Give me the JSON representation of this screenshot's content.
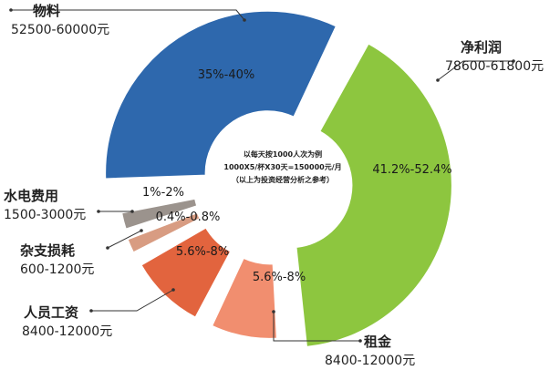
{
  "chart_data": {
    "type": "pie",
    "style": "exploded-donut",
    "slices": [
      {
        "name": "物料",
        "range": "52500-60000元",
        "percent_label": "35%-40%",
        "value": 37.5,
        "color": "#2e68ad"
      },
      {
        "name": "净利润",
        "range": "78600-61800元",
        "percent_label": "41.2%-52.4%",
        "value": 46.8,
        "color": "#8dc63f"
      },
      {
        "name": "租金",
        "range": "8400-12000元",
        "percent_label": "5.6%-8%",
        "value": 6.8,
        "color": "#f18e6f"
      },
      {
        "name": "人员工资",
        "range": "8400-12000元",
        "percent_label": "5.6%-8%",
        "value": 6.8,
        "color": "#e2643e"
      },
      {
        "name": "杂支损耗",
        "range": "600-1200元",
        "percent_label": "0.4%-0.8%",
        "value": 0.6,
        "color": "#d89c82"
      },
      {
        "name": "水电费用",
        "range": "1500-3000元",
        "percent_label": "1%-2%",
        "value": 1.5,
        "color": "#9b938d"
      }
    ],
    "center_text": [
      "以每天按1000人次为例",
      "1000X5/杯X30天=150000元/月",
      "（以上为投资经营分析之参考）"
    ]
  }
}
